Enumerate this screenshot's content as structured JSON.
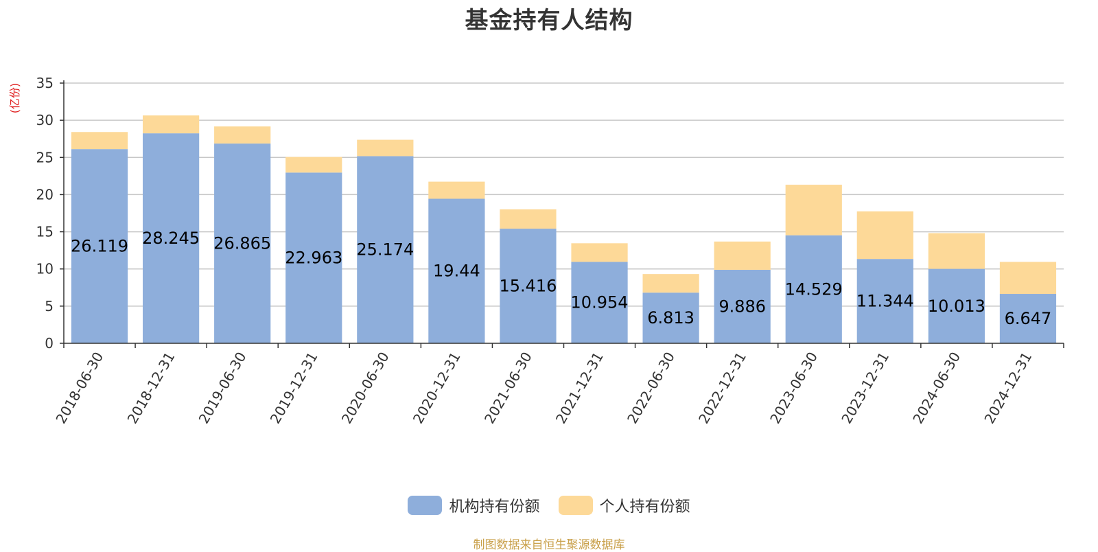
{
  "chart_data": {
    "type": "bar",
    "stacked": true,
    "title": "基金持有人结构",
    "ylabel": "(亿份)",
    "xlabel": "",
    "ylim": [
      0,
      35
    ],
    "yticks": [
      0,
      5,
      10,
      15,
      20,
      25,
      30,
      35
    ],
    "categories": [
      "2018-06-30",
      "2018-12-31",
      "2019-06-30",
      "2019-12-31",
      "2020-06-30",
      "2020-12-31",
      "2021-06-30",
      "2021-12-31",
      "2022-06-30",
      "2022-12-31",
      "2023-06-30",
      "2023-12-31",
      "2024-06-30",
      "2024-12-31"
    ],
    "series": [
      {
        "name": "机构持有份额",
        "color": "#8eaedb",
        "values": [
          26.119,
          28.245,
          26.865,
          22.963,
          25.174,
          19.44,
          15.416,
          10.954,
          6.813,
          9.886,
          14.529,
          11.344,
          10.013,
          6.647
        ],
        "labels": [
          "26.119",
          "28.245",
          "26.865",
          "22.963",
          "25.174",
          "19.44",
          "15.416",
          "10.954",
          "6.813",
          "9.886",
          "14.529",
          "11.344",
          "10.013",
          "6.647"
        ]
      },
      {
        "name": "个人持有份额",
        "color": "#fdd998",
        "values": [
          2.3,
          2.4,
          2.3,
          2.1,
          2.2,
          2.3,
          2.6,
          2.5,
          2.5,
          3.8,
          6.8,
          6.4,
          4.8,
          4.3
        ]
      }
    ],
    "legend": "bottom-center",
    "grid": true
  },
  "source": "制图数据来自恒生聚源数据库"
}
